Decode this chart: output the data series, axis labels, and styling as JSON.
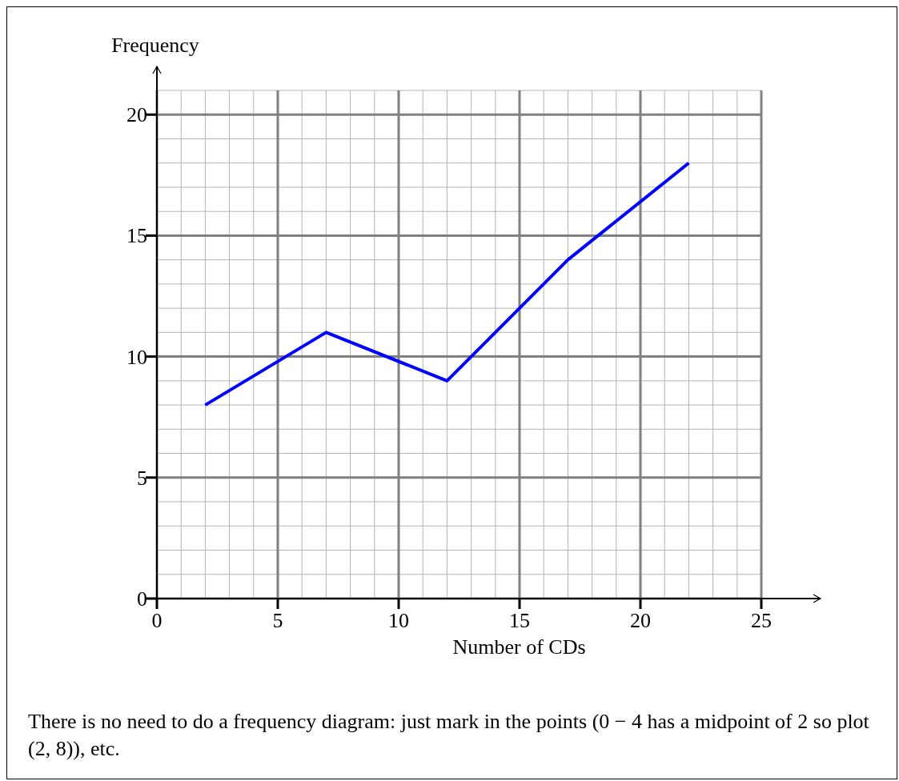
{
  "chart_data": {
    "type": "line",
    "xlabel": "Number of CDs",
    "ylabel": "Frequency",
    "x": [
      2,
      7,
      12,
      17,
      22
    ],
    "series": [
      {
        "color": "#0000ff",
        "values": [
          8,
          11,
          9,
          14,
          18
        ]
      }
    ],
    "xlim": [
      0,
      25
    ],
    "ylim": [
      0,
      21
    ],
    "xticks": [
      0,
      5,
      10,
      15,
      20,
      25
    ],
    "yticks": [
      0,
      5,
      10,
      15,
      20
    ],
    "grid": true,
    "marker": "none",
    "line_style": "solid",
    "annotations": [
      "There is no need to do a frequency diagram: just mark in the points (0 − 4 has a midpoint of 2 so plot (2, 8)), etc."
    ]
  }
}
